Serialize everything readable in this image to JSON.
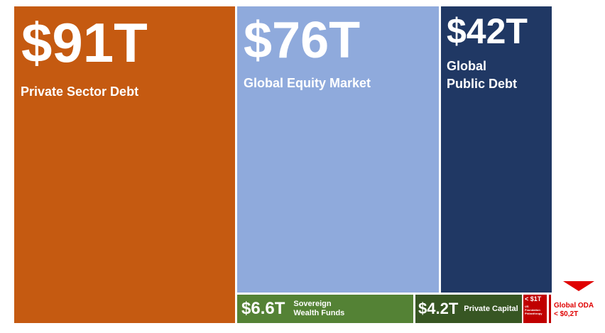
{
  "blocks": [
    {
      "value": "$91T",
      "label": [
        "Private Sector Debt"
      ]
    },
    {
      "value": "$76T",
      "label": [
        "Global Equity Market"
      ]
    },
    {
      "value": "$42T",
      "label": [
        "Global",
        "Public Debt"
      ]
    },
    {
      "value": "$6.6T",
      "label": [
        "Sovereign",
        "Wealth Funds"
      ]
    },
    {
      "value": "$4.2T",
      "label": [
        "Private Capital"
      ]
    },
    {
      "value": "< $1T",
      "label": [
        "US",
        "Foundation",
        "Philanthropy"
      ]
    }
  ],
  "callout": {
    "label": [
      "Global ODA",
      "< $0,2T"
    ]
  }
}
